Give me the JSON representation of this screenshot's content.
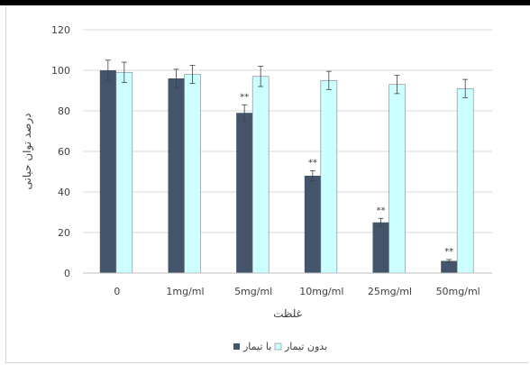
{
  "chart_data": {
    "type": "bar",
    "title": "",
    "xlabel": "غلظت",
    "ylabel": "درصد توان حیاتی",
    "ylim": [
      0,
      120
    ],
    "yticks": [
      0,
      20,
      40,
      60,
      80,
      100,
      120
    ],
    "grid": true,
    "legend_position": "bottom",
    "categories": [
      "0",
      "1mg/ml",
      "5mg/ml",
      "10mg/ml",
      "25mg/ml",
      "50mg/ml"
    ],
    "series": [
      {
        "name": "با تیمار",
        "color": "#44546a",
        "values": [
          100,
          96,
          79,
          48,
          25,
          6
        ],
        "errors": [
          5,
          4.5,
          4,
          2.5,
          2,
          0.7
        ],
        "annotations": [
          "",
          "",
          "**",
          "**",
          "**",
          "**"
        ]
      },
      {
        "name": "بدون تیمار",
        "color": "#ccffff",
        "values": [
          99,
          98,
          97,
          95,
          93,
          91
        ],
        "errors": [
          5,
          4.5,
          5,
          4.5,
          4.5,
          4.5
        ],
        "annotations": [
          "",
          "",
          "",
          "",
          "",
          ""
        ]
      }
    ]
  }
}
